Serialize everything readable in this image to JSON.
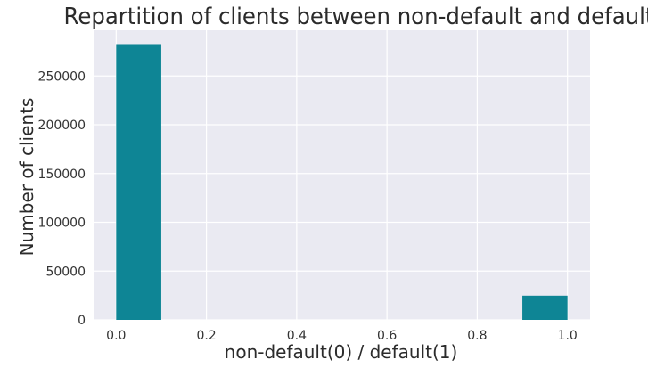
{
  "chart_data": {
    "type": "bar",
    "title": "Repartition of clients between non-default and default",
    "xlabel": "non-default(0) / default(1)",
    "ylabel": "Number of clients",
    "bins": [
      {
        "x_start": 0.0,
        "x_end": 0.1,
        "value": 282686
      },
      {
        "x_start": 0.9,
        "x_end": 1.0,
        "value": 24825
      }
    ],
    "xlim": [
      -0.05,
      1.05
    ],
    "ylim": [
      0,
      296820
    ],
    "xticks": [
      0.0,
      0.2,
      0.4,
      0.6,
      0.8,
      1.0
    ],
    "xtick_labels": [
      "0.0",
      "0.2",
      "0.4",
      "0.6",
      "0.8",
      "1.0"
    ],
    "yticks": [
      0,
      50000,
      100000,
      150000,
      200000,
      250000
    ],
    "ytick_labels": [
      "0",
      "50000",
      "100000",
      "150000",
      "200000",
      "250000"
    ],
    "grid": true,
    "colors": {
      "bar": "#0e8595",
      "plot_background": "#eaeaf2",
      "grid": "#ffffff"
    }
  }
}
